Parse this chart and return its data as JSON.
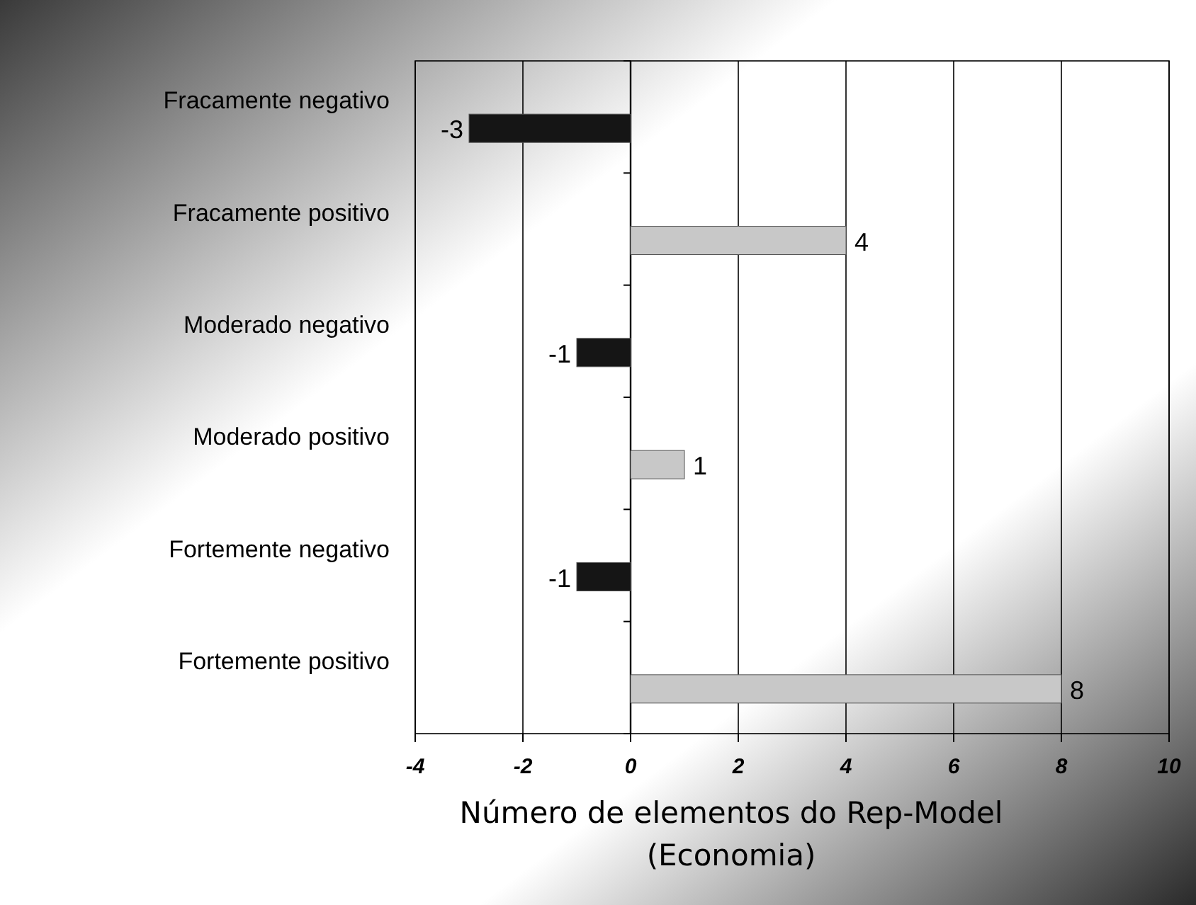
{
  "chart_data": {
    "type": "bar",
    "orientation": "horizontal",
    "categories": [
      "Fracamente negativo",
      "Fracamente positivo",
      "Moderado negativo",
      "Moderado positivo",
      "Fortemente negativo",
      "Fortemente positivo"
    ],
    "values": [
      -3,
      4,
      -1,
      1,
      -1,
      8
    ],
    "colors": [
      "#151515",
      "#c8c8c8",
      "#151515",
      "#c8c8c8",
      "#151515",
      "#c8c8c8"
    ],
    "xlim": [
      -4,
      10
    ],
    "xticks": [
      -4,
      -2,
      0,
      2,
      4,
      6,
      8,
      10
    ],
    "xlabel": "Número de elementos do Rep-Model\n(Economia)",
    "grid": "x",
    "data_labels": true
  }
}
